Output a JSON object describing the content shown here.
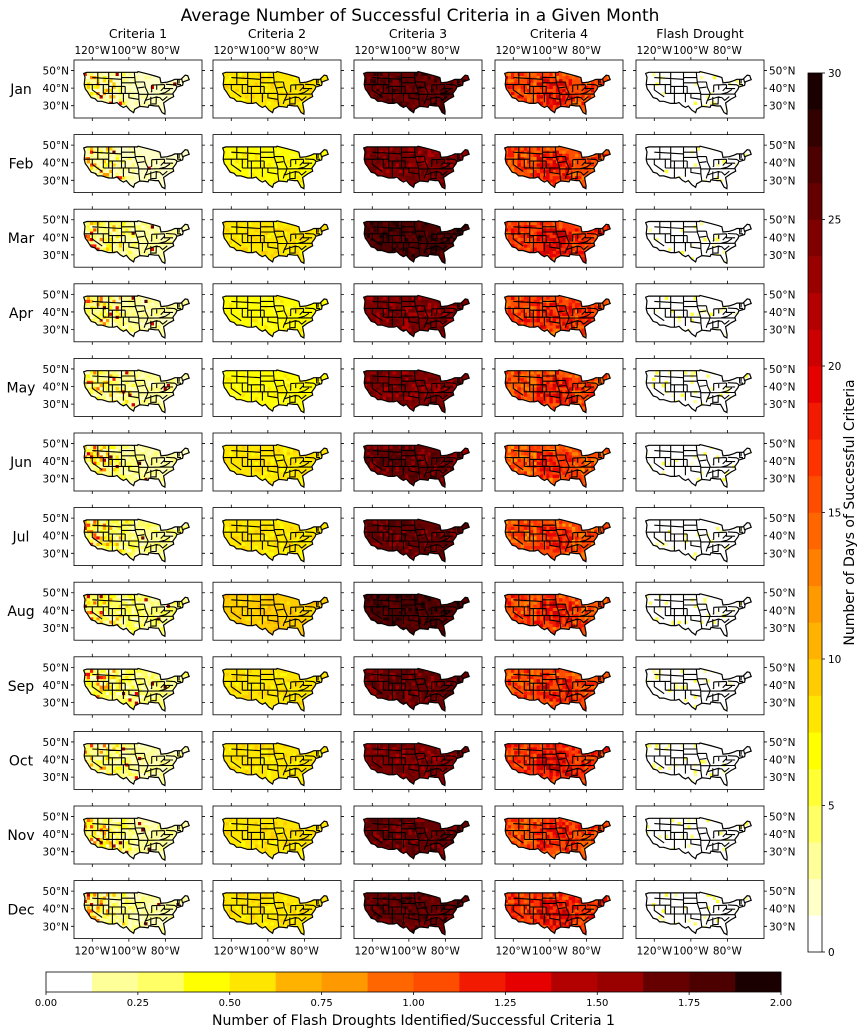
{
  "figure": {
    "title": "Average Number of Successful Criteria in a Given Month",
    "columns": [
      "Criteria 1",
      "Criteria 2",
      "Criteria 3",
      "Criteria 4",
      "Flash Drought"
    ],
    "rows": [
      "Jan",
      "Feb",
      "Mar",
      "Apr",
      "May",
      "Jun",
      "Jul",
      "Aug",
      "Sep",
      "Oct",
      "Nov",
      "Dec"
    ],
    "lon_ticks": [
      "120°W",
      "100°W",
      "80°W"
    ],
    "lat_ticks": [
      "50°N",
      "40°N",
      "30°N"
    ]
  },
  "colorbars": {
    "right": {
      "label": "Number of Days of Successful Criteria",
      "ticks": [
        0,
        5,
        10,
        15,
        20,
        25,
        30
      ],
      "range": [
        0,
        30
      ],
      "levels": 24
    },
    "bottom": {
      "label": "Number of Flash Droughts Identified/Successful Criteria 1",
      "ticks": [
        "0.00",
        "0.25",
        "0.50",
        "0.75",
        "1.00",
        "1.25",
        "1.50",
        "1.75",
        "2.00"
      ],
      "range": [
        0,
        2
      ],
      "levels": 16
    },
    "colors": [
      "#ffffff",
      "#ffffc8",
      "#ffff99",
      "#ffff66",
      "#ffff33",
      "#ffff00",
      "#ffe600",
      "#ffcc00",
      "#ffb300",
      "#ff9900",
      "#ff8000",
      "#ff6600",
      "#ff4d00",
      "#ff3300",
      "#f21a00",
      "#e60000",
      "#cc0000",
      "#b30000",
      "#990000",
      "#800000",
      "#660000",
      "#4d0000",
      "#330000",
      "#1a0000"
    ]
  },
  "chart_data": {
    "type": "heatmap",
    "title": "Average Number of Successful Criteria in a Given Month",
    "x_categories": [
      "Criteria 1",
      "Criteria 2",
      "Criteria 3",
      "Criteria 4",
      "Flash Drought"
    ],
    "y_categories": [
      "Jan",
      "Feb",
      "Mar",
      "Apr",
      "May",
      "Jun",
      "Jul",
      "Aug",
      "Sep",
      "Oct",
      "Nov",
      "Dec"
    ],
    "approx_typical_days": [
      [
        2,
        8,
        26,
        16,
        0.5
      ],
      [
        2,
        7,
        24,
        16,
        0.5
      ],
      [
        3,
        8,
        27,
        17,
        0.5
      ],
      [
        3,
        7,
        24,
        16,
        0.5
      ],
      [
        3,
        7,
        24,
        16,
        0.5
      ],
      [
        3,
        8,
        25,
        15,
        0.5
      ],
      [
        4,
        8,
        25,
        15,
        0.5
      ],
      [
        4,
        9,
        27,
        16,
        1
      ],
      [
        4,
        8,
        25,
        16,
        1
      ],
      [
        3,
        8,
        24,
        17,
        0.5
      ],
      [
        3,
        8,
        25,
        16,
        0.5
      ],
      [
        3,
        8,
        26,
        17,
        0.5
      ]
    ],
    "zlim": [
      0,
      30
    ]
  }
}
